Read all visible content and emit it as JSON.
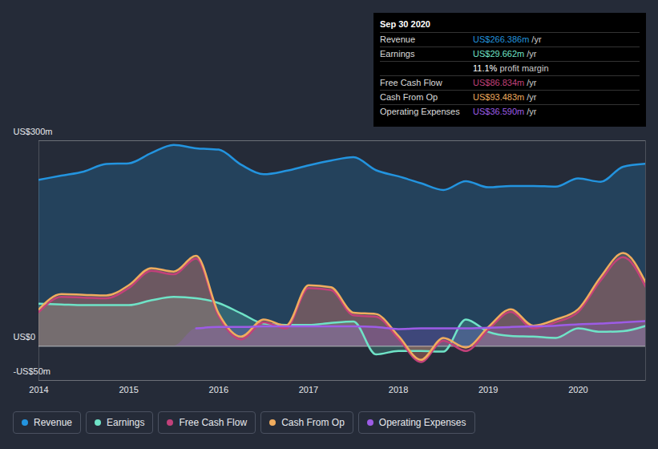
{
  "chart_data": {
    "type": "line",
    "x": [
      2014,
      2014.25,
      2014.5,
      2014.75,
      2015,
      2015.25,
      2015.5,
      2015.75,
      2016,
      2016.25,
      2016.5,
      2016.75,
      2017,
      2017.25,
      2017.5,
      2017.75,
      2018,
      2018.25,
      2018.5,
      2018.75,
      2019,
      2019.25,
      2019.5,
      2019.75,
      2020,
      2020.25,
      2020.5,
      2020.75
    ],
    "xlim": [
      2014,
      2020.75
    ],
    "xticks": [
      2014,
      2015,
      2016,
      2017,
      2018,
      2019,
      2020
    ],
    "ylim": [
      -50,
      300
    ],
    "yticks": [
      {
        "value": 300,
        "label": "US$300m"
      },
      {
        "value": 0,
        "label": "US$0"
      },
      {
        "value": -50,
        "label": "-US$50m"
      }
    ],
    "grid": true,
    "legend": "bottom",
    "series": [
      {
        "name": "Revenue",
        "color": "#2394df",
        "values": [
          243,
          249,
          255,
          266,
          267,
          282,
          294,
          289,
          287,
          265,
          251,
          256,
          264,
          271,
          276,
          257,
          248,
          238,
          228,
          241,
          232,
          234,
          234,
          233,
          245,
          240,
          262,
          266.386
        ]
      },
      {
        "name": "Earnings",
        "color": "#6fe3c7",
        "values": [
          62,
          61,
          60,
          60,
          60,
          67,
          72,
          70,
          63,
          48,
          33,
          31,
          31,
          34,
          36,
          -12,
          -7,
          -7,
          -8,
          39,
          21,
          15,
          14,
          12,
          26,
          21,
          22,
          29.662
        ]
      },
      {
        "name": "Free Cash Flow",
        "color": "#c2417a",
        "values": [
          50,
          72,
          71,
          70,
          85,
          110,
          105,
          128,
          44,
          10,
          35,
          26,
          85,
          82,
          45,
          43,
          11,
          -23,
          8,
          -7,
          24,
          50,
          26,
          35,
          50,
          96,
          130,
          86.834
        ]
      },
      {
        "name": "Cash From Op",
        "color": "#f0ac5e",
        "values": [
          54,
          76,
          75,
          74,
          89,
          114,
          109,
          132,
          48,
          14,
          39,
          30,
          89,
          86,
          49,
          47,
          15,
          -20,
          12,
          -2,
          28,
          54,
          30,
          39,
          54,
          101,
          136,
          93.483
        ]
      },
      {
        "name": "Operating Expenses",
        "color": "#9d5ce6",
        "values": [
          null,
          null,
          null,
          null,
          null,
          null,
          null,
          26,
          28,
          28,
          29,
          29,
          29,
          29,
          29,
          28,
          25,
          26,
          26,
          26,
          27,
          28,
          29,
          30,
          32,
          33,
          35,
          36.59
        ]
      }
    ],
    "annotation": {
      "title": "Sep 30 2020",
      "rows": [
        {
          "label": "Revenue",
          "value": "US$266.386m",
          "unit": "/yr"
        },
        {
          "label": "Earnings",
          "value": "US$29.662m",
          "unit": "/yr"
        },
        {
          "value": "11.1%",
          "unit": "profit margin"
        },
        {
          "label": "Free Cash Flow",
          "value": "US$86.834m",
          "unit": "/yr"
        },
        {
          "label": "Cash From Op",
          "value": "US$93.483m",
          "unit": "/yr"
        },
        {
          "label": "Operating Expenses",
          "value": "US$36.590m",
          "unit": "/yr"
        }
      ]
    }
  }
}
